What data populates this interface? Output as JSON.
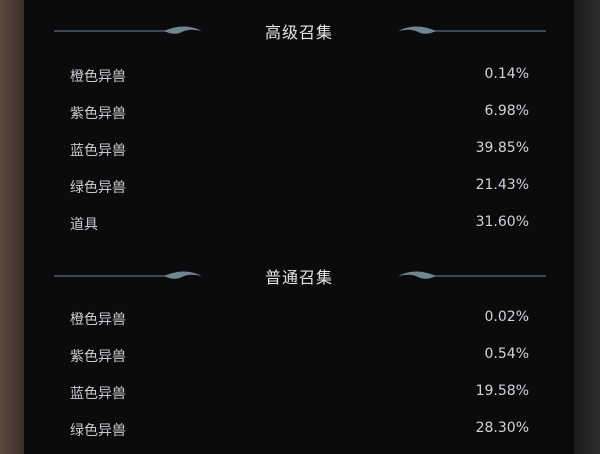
{
  "sections": [
    {
      "title": "高级召集",
      "rows": [
        {
          "label": "橙色异兽",
          "value": "0.14%"
        },
        {
          "label": "紫色异兽",
          "value": "6.98%"
        },
        {
          "label": "蓝色异兽",
          "value": "39.85%"
        },
        {
          "label": "绿色异兽",
          "value": "21.43%"
        },
        {
          "label": "道具",
          "value": "31.60%"
        }
      ]
    },
    {
      "title": "普通召集",
      "rows": [
        {
          "label": "橙色异兽",
          "value": "0.02%"
        },
        {
          "label": "紫色异兽",
          "value": "0.54%"
        },
        {
          "label": "蓝色异兽",
          "value": "19.58%"
        },
        {
          "label": "绿色异兽",
          "value": "28.30%"
        }
      ]
    }
  ],
  "colors": {
    "panel": "#0b0b0e",
    "ornament": "#6f8590",
    "text": "#c9cacc"
  }
}
